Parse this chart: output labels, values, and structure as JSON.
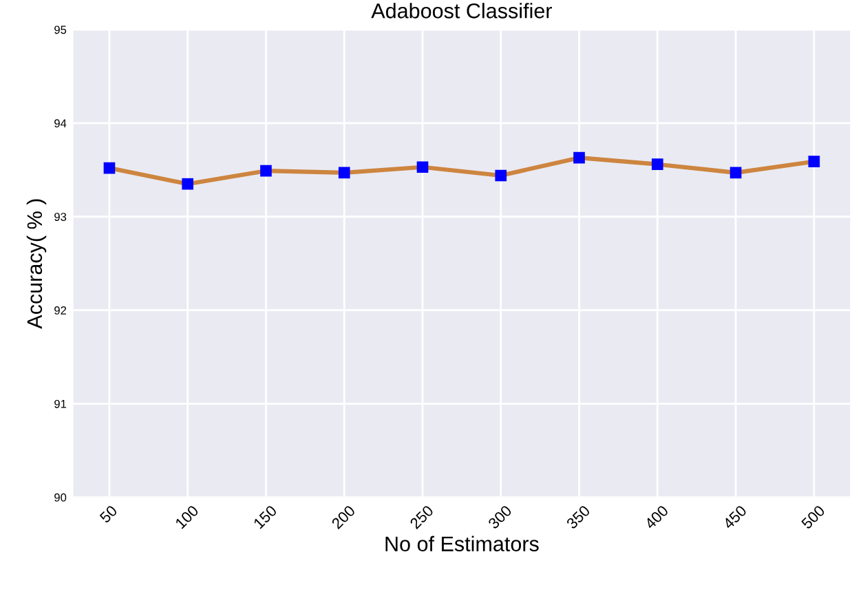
{
  "chart_data": {
    "type": "line",
    "title": "Adaboost Classifier",
    "xlabel": "No of Estimators",
    "ylabel": "Accuracy( % )",
    "x": [
      50,
      100,
      150,
      200,
      250,
      300,
      350,
      400,
      450,
      500
    ],
    "series": [
      {
        "color": "#cd853f",
        "colors": [
          "#0000ff",
          "#0000ff",
          "#0000ff",
          "#0000ff",
          "#0000ff",
          "#0000ff",
          "#0000ff",
          "#0000ff",
          "#0000ff",
          "#0000ff"
        ],
        "values": [
          93.52,
          93.35,
          93.49,
          93.47,
          93.53,
          93.44,
          93.63,
          93.56,
          93.47,
          93.59
        ]
      }
    ],
    "xlim": [
      27,
      523
    ],
    "xticks": [
      50,
      100,
      150,
      200,
      250,
      300,
      350,
      400,
      450,
      500
    ],
    "ylim": [
      90,
      95
    ],
    "yticks": [
      90,
      91,
      92,
      93,
      94,
      95
    ],
    "grid": true,
    "marker": "square",
    "line_style": "solid"
  }
}
